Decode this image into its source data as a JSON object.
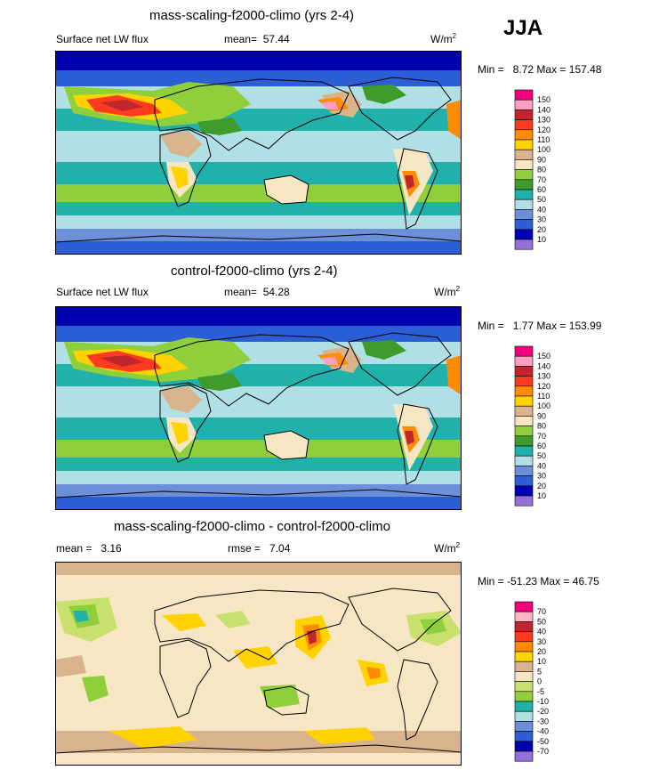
{
  "season": "JJA",
  "unit_base": "W/m",
  "unit_exp": "2",
  "chart_data": [
    {
      "type": "heatmap",
      "title": "mass-scaling-f2000-climo (yrs 2-4)",
      "left_label": "Surface net LW flux",
      "mean_label": "mean=",
      "mean_value": "57.44",
      "min_label": "Min =",
      "min_value": "8.72",
      "max_label": "Max =",
      "max_value": "157.48",
      "levels": [
        "150",
        "140",
        "130",
        "120",
        "110",
        "100",
        "90",
        "80",
        "70",
        "60",
        "50",
        "40",
        "30",
        "20",
        "10"
      ],
      "colors": [
        "#f0027f",
        "#ff9ec2",
        "#c0272d",
        "#ff3b1f",
        "#ff8c00",
        "#ffd200",
        "#d9b38c",
        "#f7e6c4",
        "#8fcf3c",
        "#3f9b2b",
        "#20b2aa",
        "#b0e0e6",
        "#6c8fd9",
        "#2c5ed6",
        "#0000b0",
        "#9370db"
      ]
    },
    {
      "type": "heatmap",
      "title": "control-f2000-climo (yrs 2-4)",
      "left_label": "Surface net LW flux",
      "mean_label": "mean=",
      "mean_value": "54.28",
      "min_label": "Min =",
      "min_value": "1.77",
      "max_label": "Max =",
      "max_value": "153.99",
      "levels": [
        "150",
        "140",
        "130",
        "120",
        "110",
        "100",
        "90",
        "80",
        "70",
        "60",
        "50",
        "40",
        "30",
        "20",
        "10"
      ],
      "colors": [
        "#f0027f",
        "#ff9ec2",
        "#c0272d",
        "#ff3b1f",
        "#ff8c00",
        "#ffd200",
        "#d9b38c",
        "#f7e6c4",
        "#8fcf3c",
        "#3f9b2b",
        "#20b2aa",
        "#b0e0e6",
        "#6c8fd9",
        "#2c5ed6",
        "#0000b0",
        "#9370db"
      ]
    },
    {
      "type": "heatmap",
      "title": "mass-scaling-f2000-climo - control-f2000-climo",
      "left_label": "mean =",
      "left_value": "3.16",
      "mean_label": "rmse =",
      "mean_value": "7.04",
      "min_label": "Min =",
      "min_value": "-51.23",
      "max_label": "Max =",
      "max_value": "46.75",
      "levels": [
        "70",
        "50",
        "40",
        "30",
        "20",
        "10",
        "5",
        "0",
        "-5",
        "-10",
        "-20",
        "-30",
        "-40",
        "-50",
        "-70"
      ],
      "colors": [
        "#f0027f",
        "#ffb6c1",
        "#c0272d",
        "#ff3b1f",
        "#ff8c00",
        "#ffd200",
        "#d9b38c",
        "#f7e6c4",
        "#c8e06e",
        "#8fcf3c",
        "#20b2aa",
        "#b0e0e6",
        "#6c8fd9",
        "#2c5ed6",
        "#0000b0",
        "#9370db"
      ]
    }
  ]
}
